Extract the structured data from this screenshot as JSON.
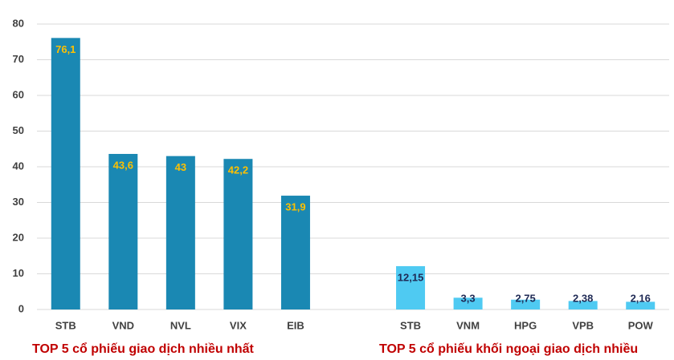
{
  "chart_data": {
    "type": "bar",
    "categories": [
      "STB",
      "VND",
      "NVL",
      "VIX",
      "EIB",
      null,
      "STB",
      "VNM",
      "HPG",
      "VPB",
      "POW"
    ],
    "series": [
      {
        "name": "TOP 5 cổ phiếu giao dịch nhiều nhất",
        "color": "#1a88b3",
        "label_color": "#ffc000",
        "values": [
          76.1,
          43.6,
          43,
          42.2,
          31.9,
          null,
          null,
          null,
          null,
          null,
          null
        ],
        "value_labels": [
          "76,1",
          "43,6",
          "43",
          "42,2",
          "31,9",
          null,
          null,
          null,
          null,
          null,
          null
        ]
      },
      {
        "name": "TOP 5 cổ phiếu khối ngoại giao dịch nhiều",
        "color": "#4fcaf2",
        "label_color": "#1f2a55",
        "values": [
          null,
          null,
          null,
          null,
          null,
          null,
          12.15,
          3.3,
          2.75,
          2.38,
          2.16
        ],
        "value_labels": [
          null,
          null,
          null,
          null,
          null,
          null,
          "12,15",
          "3,3",
          "2,75",
          "2,38",
          "2,16"
        ]
      }
    ],
    "ylim": [
      0,
      80
    ],
    "yticks": [
      0,
      10,
      20,
      30,
      40,
      50,
      60,
      70,
      80
    ],
    "grid": true
  }
}
